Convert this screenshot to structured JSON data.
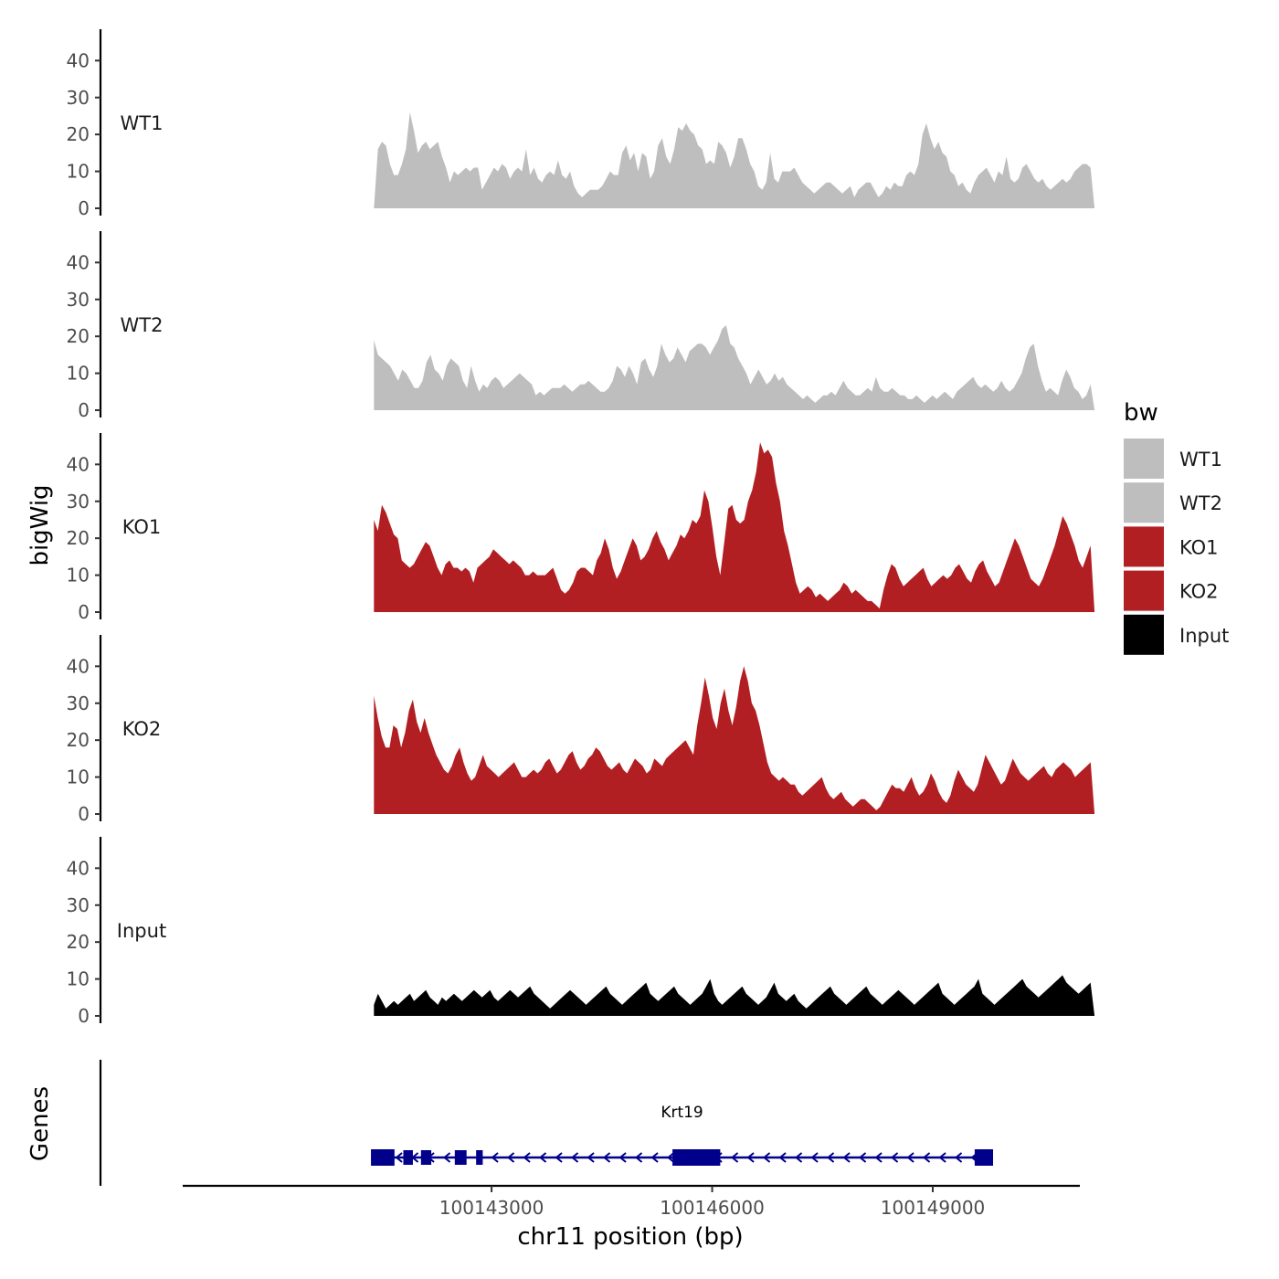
{
  "chart_data": {
    "type": "area",
    "ylabel": "bigWig",
    "genes_label": "Genes",
    "xlabel": "chr11 position (bp)",
    "ylim": [
      0,
      48
    ],
    "yticks": [
      0,
      10,
      20,
      30,
      40
    ],
    "xlim": [
      100138800,
      100151000
    ],
    "xticks": [
      100143000,
      100146000,
      100149000
    ],
    "xtick_labels": [
      "100143000",
      "100146000",
      "100149000"
    ],
    "tracks": [
      {
        "name": "WT1",
        "color": "#bebebe",
        "x_start": 100141400,
        "x_end": 100151200,
        "values": [
          0,
          16,
          18,
          17,
          12,
          9,
          9,
          12,
          16,
          26,
          21,
          15,
          17,
          18,
          16,
          17,
          18,
          14,
          11,
          7,
          10,
          9,
          10,
          11,
          10,
          11,
          11,
          5,
          7,
          9,
          11,
          10,
          12,
          11,
          8,
          10,
          11,
          10,
          16,
          9,
          11,
          8,
          7,
          9,
          10,
          9,
          13,
          9,
          8,
          10,
          6,
          4,
          3,
          4,
          5,
          5,
          5,
          6,
          8,
          10,
          9,
          9,
          15,
          17,
          13,
          15,
          10,
          15,
          14,
          8,
          10,
          17,
          19,
          14,
          12,
          16,
          22,
          21,
          23,
          21,
          20,
          17,
          16,
          12,
          13,
          12,
          18,
          17,
          15,
          11,
          14,
          19,
          19,
          16,
          12,
          10,
          6,
          5,
          7,
          15,
          8,
          7,
          10,
          10,
          10,
          11,
          9,
          7,
          6,
          5,
          4,
          5,
          6,
          7,
          7,
          6,
          5,
          4,
          5,
          6,
          3,
          5,
          6,
          7,
          7,
          5,
          3,
          4,
          6,
          5,
          7,
          6,
          6,
          9,
          10,
          9,
          12,
          20,
          23,
          19,
          16,
          18,
          15,
          14,
          10,
          9,
          6,
          7,
          5,
          4,
          7,
          9,
          10,
          11,
          9,
          7,
          10,
          9,
          14,
          8,
          7,
          8,
          11,
          12,
          10,
          8,
          7,
          8,
          6,
          5,
          6,
          7,
          8,
          7,
          8,
          10,
          11,
          12,
          12,
          11,
          0
        ]
      },
      {
        "name": "WT2",
        "color": "#bebebe",
        "x_start": 100141400,
        "x_end": 100151200,
        "values": [
          19,
          15,
          14,
          13,
          12,
          10,
          8,
          11,
          10,
          8,
          6,
          6,
          8,
          13,
          15,
          11,
          10,
          8,
          12,
          14,
          13,
          12,
          8,
          6,
          12,
          8,
          5,
          7,
          6,
          8,
          9,
          8,
          6,
          7,
          8,
          9,
          10,
          9,
          8,
          7,
          4,
          5,
          4,
          5,
          6,
          6,
          6,
          7,
          6,
          5,
          6,
          7,
          7,
          8,
          7,
          6,
          5,
          5,
          6,
          8,
          12,
          11,
          9,
          12,
          10,
          7,
          13,
          14,
          11,
          9,
          12,
          18,
          15,
          13,
          14,
          17,
          15,
          13,
          16,
          17,
          18,
          18,
          17,
          15,
          17,
          19,
          22,
          23,
          18,
          17,
          14,
          12,
          10,
          7,
          9,
          11,
          9,
          7,
          8,
          10,
          8,
          9,
          7,
          6,
          5,
          4,
          3,
          4,
          3,
          2,
          3,
          4,
          4,
          5,
          4,
          6,
          8,
          6,
          5,
          4,
          4,
          5,
          6,
          5,
          9,
          6,
          5,
          5,
          6,
          5,
          4,
          4,
          3,
          3,
          4,
          3,
          2,
          3,
          4,
          3,
          4,
          5,
          4,
          3,
          5,
          6,
          7,
          8,
          9,
          7,
          6,
          7,
          6,
          5,
          6,
          8,
          6,
          5,
          6,
          8,
          10,
          14,
          17,
          18,
          12,
          8,
          5,
          6,
          5,
          4,
          8,
          11,
          9,
          6,
          5,
          3,
          4,
          7,
          0
        ]
      },
      {
        "name": "KO1",
        "color": "#b21f22",
        "x_start": 100141400,
        "x_end": 100151200,
        "values": [
          25,
          22,
          29,
          27,
          24,
          21,
          20,
          14,
          13,
          12,
          13,
          15,
          17,
          19,
          18,
          15,
          12,
          10,
          13,
          14,
          12,
          12,
          11,
          12,
          11,
          8,
          12,
          13,
          14,
          15,
          17,
          16,
          15,
          14,
          13,
          14,
          13,
          12,
          10,
          10,
          11,
          10,
          10,
          10,
          11,
          12,
          9,
          6,
          5,
          6,
          8,
          11,
          12,
          12,
          11,
          10,
          14,
          16,
          20,
          17,
          12,
          9,
          11,
          14,
          17,
          20,
          18,
          14,
          15,
          17,
          20,
          22,
          19,
          17,
          14,
          16,
          18,
          21,
          20,
          22,
          25,
          24,
          26,
          33,
          30,
          23,
          15,
          10,
          19,
          28,
          29,
          25,
          24,
          25,
          30,
          33,
          38,
          46,
          43,
          44,
          42,
          35,
          30,
          22,
          18,
          13,
          8,
          5,
          6,
          7,
          6,
          4,
          5,
          4,
          3,
          4,
          5,
          6,
          8,
          7,
          5,
          6,
          5,
          4,
          3,
          3,
          2,
          1,
          6,
          10,
          13,
          12,
          9,
          7,
          8,
          9,
          10,
          11,
          12,
          9,
          7,
          8,
          9,
          10,
          9,
          10,
          12,
          13,
          11,
          9,
          8,
          11,
          13,
          14,
          11,
          9,
          7,
          8,
          11,
          14,
          17,
          20,
          18,
          15,
          12,
          9,
          8,
          7,
          9,
          12,
          15,
          18,
          22,
          26,
          24,
          21,
          18,
          14,
          12,
          15,
          18,
          0
        ]
      },
      {
        "name": "KO2",
        "color": "#b21f22",
        "x_start": 100141400,
        "x_end": 100151200,
        "values": [
          32,
          26,
          21,
          18,
          18,
          24,
          23,
          18,
          22,
          28,
          31,
          25,
          22,
          26,
          22,
          19,
          16,
          14,
          12,
          11,
          13,
          16,
          18,
          14,
          11,
          9,
          10,
          13,
          16,
          13,
          12,
          11,
          10,
          11,
          12,
          13,
          14,
          12,
          10,
          10,
          11,
          12,
          11,
          12,
          14,
          15,
          13,
          11,
          12,
          14,
          16,
          17,
          14,
          12,
          13,
          15,
          16,
          18,
          17,
          15,
          13,
          12,
          13,
          14,
          12,
          11,
          13,
          15,
          14,
          13,
          11,
          12,
          15,
          14,
          13,
          15,
          16,
          17,
          18,
          19,
          20,
          18,
          16,
          24,
          30,
          37,
          32,
          26,
          23,
          30,
          34,
          28,
          24,
          29,
          36,
          40,
          36,
          30,
          28,
          24,
          19,
          14,
          11,
          10,
          9,
          10,
          9,
          8,
          8,
          6,
          5,
          6,
          7,
          8,
          9,
          10,
          7,
          5,
          4,
          5,
          6,
          4,
          3,
          2,
          3,
          4,
          4,
          3,
          2,
          1,
          2,
          4,
          6,
          8,
          7,
          7,
          6,
          8,
          10,
          7,
          5,
          6,
          8,
          11,
          9,
          6,
          4,
          3,
          5,
          9,
          12,
          10,
          8,
          7,
          6,
          8,
          12,
          16,
          14,
          12,
          10,
          8,
          9,
          12,
          15,
          13,
          11,
          10,
          9,
          10,
          11,
          12,
          13,
          11,
          10,
          12,
          13,
          14,
          13,
          12,
          10,
          11,
          12,
          13,
          14,
          0
        ]
      },
      {
        "name": "Input",
        "color": "#000000",
        "x_start": 100141400,
        "x_end": 100151200,
        "values": [
          3,
          6,
          4,
          2,
          3,
          4,
          3,
          4,
          5,
          6,
          4,
          5,
          6,
          7,
          5,
          4,
          3,
          5,
          4,
          5,
          6,
          5,
          4,
          5,
          6,
          7,
          6,
          5,
          6,
          7,
          5,
          4,
          5,
          6,
          7,
          6,
          5,
          6,
          7,
          8,
          6,
          5,
          4,
          3,
          2,
          3,
          4,
          5,
          6,
          7,
          6,
          5,
          4,
          3,
          4,
          5,
          6,
          7,
          8,
          6,
          5,
          4,
          3,
          4,
          5,
          6,
          7,
          8,
          9,
          6,
          5,
          4,
          5,
          6,
          7,
          8,
          6,
          5,
          4,
          3,
          4,
          5,
          6,
          8,
          10,
          6,
          4,
          3,
          4,
          5,
          6,
          7,
          8,
          6,
          5,
          4,
          3,
          4,
          5,
          7,
          9,
          6,
          5,
          4,
          5,
          6,
          4,
          3,
          2,
          3,
          4,
          5,
          6,
          7,
          8,
          6,
          5,
          4,
          3,
          4,
          5,
          6,
          7,
          8,
          6,
          5,
          4,
          3,
          4,
          5,
          6,
          7,
          6,
          5,
          4,
          3,
          4,
          5,
          6,
          7,
          8,
          9,
          6,
          5,
          4,
          3,
          4,
          5,
          6,
          7,
          8,
          10,
          6,
          5,
          4,
          3,
          4,
          5,
          6,
          7,
          8,
          9,
          10,
          8,
          7,
          6,
          5,
          6,
          7,
          8,
          9,
          10,
          11,
          9,
          8,
          7,
          6,
          7,
          8,
          9,
          0
        ]
      }
    ],
    "legend": {
      "title": "bw",
      "position": "right",
      "items": [
        {
          "label": "WT1",
          "color": "#bebebe"
        },
        {
          "label": "WT2",
          "color": "#bebebe"
        },
        {
          "label": "KO1",
          "color": "#b21f22"
        },
        {
          "label": "KO2",
          "color": "#b21f22"
        },
        {
          "label": "Input",
          "color": "#000000"
        }
      ]
    },
    "gene": {
      "name": "Krt19",
      "strand": "-",
      "color": "#00008b",
      "start": 100141360,
      "end": 100149820,
      "exons": [
        [
          100141360,
          100141680
        ],
        [
          100141800,
          100141930
        ],
        [
          100142040,
          100142180
        ],
        [
          100142500,
          100142660
        ],
        [
          100142790,
          100142880
        ],
        [
          100145460,
          100146110
        ],
        [
          100149570,
          100149820
        ]
      ],
      "thick_exons": [
        0,
        5,
        6
      ]
    }
  }
}
